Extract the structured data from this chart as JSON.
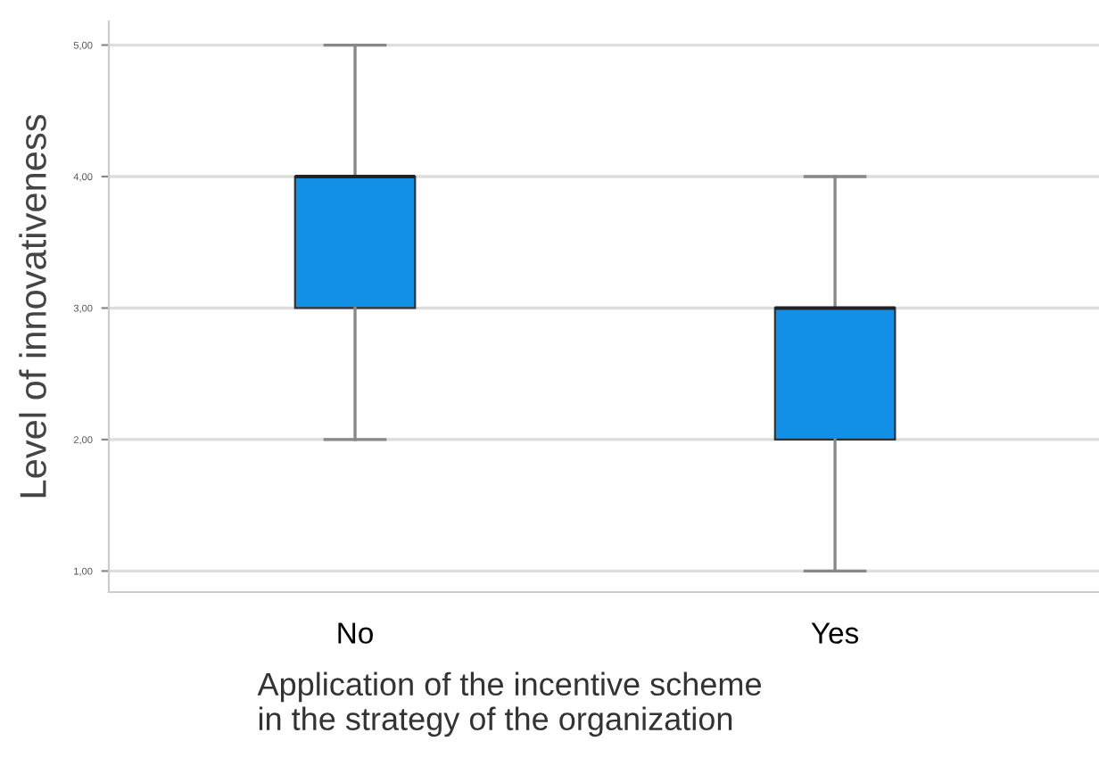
{
  "chart_data": {
    "type": "box",
    "xlabel": "Application of the incentive scheme\nin the strategy of the organization",
    "ylabel": "Level of innovativeness",
    "categories": [
      "No",
      "Yes"
    ],
    "boxes": [
      {
        "low": 2,
        "q1": 3,
        "median": 4,
        "q3": 4,
        "high": 5
      },
      {
        "low": 1,
        "q1": 2,
        "median": 3,
        "q3": 3,
        "high": 4
      }
    ],
    "color": "#1290e6",
    "ylim": [
      0.84,
      5.18
    ],
    "yticks": [
      {
        "value": 1,
        "label": "1,00"
      },
      {
        "value": 2,
        "label": "2,00"
      },
      {
        "value": 3,
        "label": "3,00"
      },
      {
        "value": 4,
        "label": "4,00"
      },
      {
        "value": 5,
        "label": "5,00"
      }
    ],
    "grid": "y"
  }
}
